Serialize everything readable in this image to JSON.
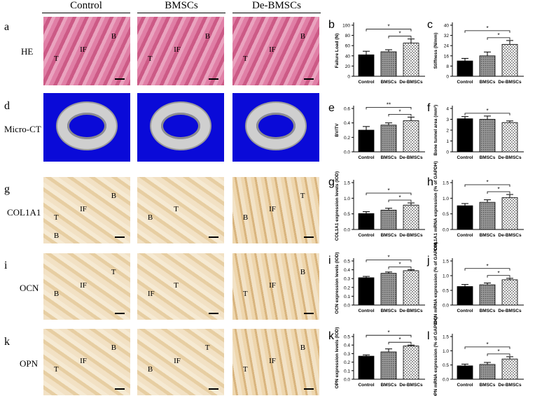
{
  "columns": [
    "Control",
    "BMSCs",
    "De-BMSCs"
  ],
  "rows": [
    {
      "letter": "a",
      "label": "HE",
      "type": "he",
      "tissue": [
        [
          "T",
          "IF",
          "B"
        ],
        [
          "T",
          "IF",
          "B"
        ],
        [
          "T",
          "IF",
          "B"
        ]
      ]
    },
    {
      "letter": "d",
      "label": "Micro-CT",
      "type": "ct",
      "tissue": [
        [],
        [],
        []
      ]
    },
    {
      "letter": "g",
      "label": "COL1A1",
      "type": "ihc",
      "tissue": [
        [
          "T",
          "IF",
          "B",
          "B"
        ],
        [
          "B",
          "T"
        ],
        [
          "B",
          "IF",
          "T"
        ]
      ]
    },
    {
      "letter": "i",
      "label": "OCN",
      "type": "ihc",
      "tissue": [
        [
          "B",
          "IF",
          "T"
        ],
        [
          "IF",
          "T"
        ],
        [
          "T",
          "IF",
          "B"
        ]
      ]
    },
    {
      "letter": "k",
      "label": "OPN",
      "type": "ihc",
      "tissue": [
        [
          "T",
          "IF",
          "B"
        ],
        [
          "B",
          "IF",
          "T"
        ],
        [
          "T",
          "IF",
          "B"
        ]
      ]
    }
  ],
  "colors": {
    "control": "#000000",
    "bmscs": "#7a7a7a",
    "debmscs": "#dcdcdc",
    "ct_bg": "#0a0ad8"
  },
  "chart_data": [
    {
      "letter": "b",
      "type": "bar",
      "categories": [
        "Control",
        "BMSCs",
        "De-BMSCs"
      ],
      "values": [
        42,
        48,
        65
      ],
      "errors": [
        7,
        4,
        8
      ],
      "ylabel": "Failure Load (N)",
      "ylim": [
        0,
        100
      ],
      "yticks": [
        0,
        20,
        40,
        60,
        80,
        100
      ],
      "sig": [
        {
          "a": 0,
          "b": 2,
          "mark": "*"
        },
        {
          "a": 1,
          "b": 2,
          "mark": "*"
        }
      ]
    },
    {
      "letter": "c",
      "type": "bar",
      "categories": [
        "Control",
        "BMSCs",
        "De-BMSCs"
      ],
      "values": [
        12,
        16,
        25
      ],
      "errors": [
        2,
        3,
        3
      ],
      "ylabel": "Stiffness (N/mm)",
      "ylim": [
        0,
        40
      ],
      "yticks": [
        0,
        8,
        16,
        24,
        32,
        40
      ],
      "sig": [
        {
          "a": 0,
          "b": 2,
          "mark": "*"
        },
        {
          "a": 1,
          "b": 2,
          "mark": "*"
        }
      ]
    },
    {
      "letter": "e",
      "type": "bar",
      "categories": [
        "Control",
        "BMSCs",
        "De-BMSCs"
      ],
      "values": [
        0.3,
        0.37,
        0.43
      ],
      "errors": [
        0.05,
        0.03,
        0.05
      ],
      "ylabel": "BV/TV",
      "ylim": [
        0,
        0.6
      ],
      "yticks": [
        0.0,
        0.2,
        0.4,
        0.6
      ],
      "sig": [
        {
          "a": 0,
          "b": 2,
          "mark": "**"
        },
        {
          "a": 1,
          "b": 2,
          "mark": "*"
        }
      ]
    },
    {
      "letter": "f",
      "type": "bar",
      "categories": [
        "Control",
        "BMSCs",
        "De-BMSCs"
      ],
      "values": [
        3.05,
        3.0,
        2.7
      ],
      "errors": [
        0.2,
        0.3,
        0.15
      ],
      "ylabel": "Bone tunnel area   (mm²)",
      "ylim": [
        0,
        4
      ],
      "yticks": [
        0,
        1,
        2,
        3,
        4
      ],
      "sig": [
        {
          "a": 0,
          "b": 2,
          "mark": "*"
        }
      ]
    },
    {
      "letter": "g",
      "type": "bar",
      "categories": [
        "Control",
        "BMSCs",
        "De-BMSCs"
      ],
      "values": [
        0.51,
        0.62,
        0.78
      ],
      "errors": [
        0.06,
        0.06,
        0.07
      ],
      "ylabel": "COL1A1 expression  levels (IOD)",
      "ylim": [
        0,
        1.5
      ],
      "yticks": [
        0.0,
        0.5,
        1.0,
        1.5
      ],
      "sig": [
        {
          "a": 0,
          "b": 2,
          "mark": "*"
        },
        {
          "a": 1,
          "b": 2,
          "mark": "*"
        }
      ]
    },
    {
      "letter": "h",
      "type": "bar",
      "categories": [
        "Control",
        "BMSCs",
        "De-BMSCs"
      ],
      "values": [
        0.76,
        0.87,
        1.02
      ],
      "errors": [
        0.07,
        0.08,
        0.1
      ],
      "ylabel": "COL1A1 mRNA expression (% of GAPDH)",
      "ylim": [
        0,
        1.5
      ],
      "yticks": [
        0.0,
        0.5,
        1.0,
        1.5
      ],
      "sig": [
        {
          "a": 0,
          "b": 2,
          "mark": "*"
        },
        {
          "a": 1,
          "b": 2,
          "mark": "*"
        }
      ]
    },
    {
      "letter": "i",
      "type": "bar",
      "categories": [
        "Control",
        "BMSCs",
        "De-BMSCs"
      ],
      "values": [
        0.31,
        0.36,
        0.39
      ],
      "errors": [
        0.015,
        0.015,
        0.01
      ],
      "ylabel": "OCN expression  levels (IOD)",
      "ylim": [
        0,
        0.5
      ],
      "yticks": [
        0.0,
        0.1,
        0.2,
        0.3,
        0.4,
        0.5
      ],
      "sig": [
        {
          "a": 0,
          "b": 2,
          "mark": "*"
        },
        {
          "a": 1,
          "b": 2,
          "mark": "*"
        }
      ]
    },
    {
      "letter": "j",
      "type": "bar",
      "categories": [
        "Control",
        "BMSCs",
        "De-BMSCs"
      ],
      "values": [
        0.63,
        0.69,
        0.86
      ],
      "errors": [
        0.07,
        0.06,
        0.05
      ],
      "ylabel": "OCN mRNA expression (% of GAPDH)",
      "ylim": [
        0,
        1.5
      ],
      "yticks": [
        0.0,
        0.5,
        1.0,
        1.5
      ],
      "sig": [
        {
          "a": 0,
          "b": 2,
          "mark": "*"
        },
        {
          "a": 1,
          "b": 2,
          "mark": "*"
        }
      ]
    },
    {
      "letter": "k",
      "type": "bar",
      "categories": [
        "Control",
        "BMSCs",
        "De-BMSCs"
      ],
      "values": [
        0.27,
        0.32,
        0.39
      ],
      "errors": [
        0.015,
        0.035,
        0.01
      ],
      "ylabel": "OPN expression  levels (IOD)",
      "ylim": [
        0,
        0.5
      ],
      "yticks": [
        0.0,
        0.1,
        0.2,
        0.3,
        0.4,
        0.5
      ],
      "sig": [
        {
          "a": 0,
          "b": 2,
          "mark": "*"
        },
        {
          "a": 1,
          "b": 2,
          "mark": "*"
        }
      ]
    },
    {
      "letter": "l",
      "type": "bar",
      "categories": [
        "Control",
        "BMSCs",
        "De-BMSCs"
      ],
      "values": [
        0.47,
        0.52,
        0.71
      ],
      "errors": [
        0.06,
        0.07,
        0.08
      ],
      "ylabel": "OPN mRNA expression (% of GAPDH)",
      "ylim": [
        0,
        1.5
      ],
      "yticks": [
        0.0,
        0.5,
        1.0,
        1.5
      ],
      "sig": [
        {
          "a": 0,
          "b": 2,
          "mark": "*"
        },
        {
          "a": 1,
          "b": 2,
          "mark": "*"
        }
      ]
    }
  ]
}
